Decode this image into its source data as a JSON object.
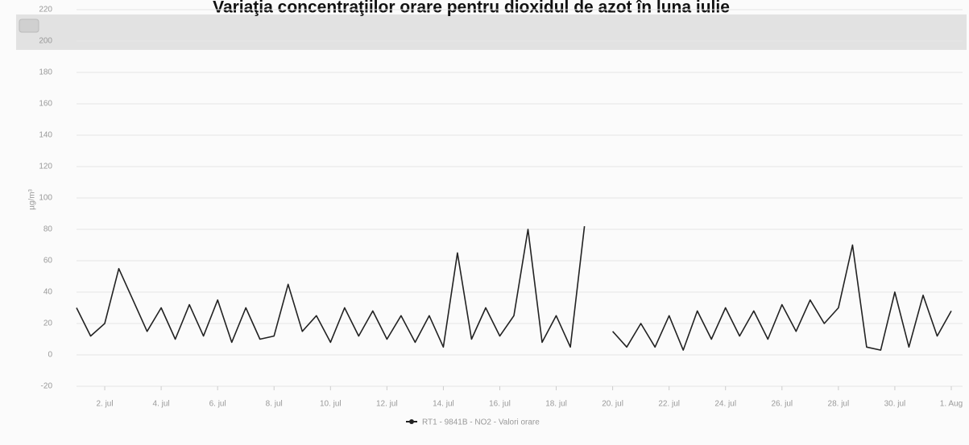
{
  "chart_data": {
    "type": "line",
    "title": "Variaţia concentraţiilor orare pentru dioxidul de azot în luna iulie",
    "y_label": "µg/m³",
    "x": [
      1,
      1.5,
      2,
      2.5,
      3,
      3.5,
      4,
      4.5,
      5,
      5.5,
      6,
      6.5,
      7,
      7.5,
      8,
      8.5,
      9,
      9.5,
      10,
      10.5,
      11,
      11.5,
      12,
      12.5,
      13,
      13.5,
      14,
      14.5,
      15,
      15.5,
      16,
      16.5,
      17,
      17.5,
      18,
      18.5,
      19,
      19.5,
      20,
      20.5,
      21,
      21.5,
      22,
      22.5,
      23,
      23.5,
      24,
      24.5,
      25,
      25.5,
      26,
      26.5,
      27,
      27.5,
      28,
      28.5,
      29,
      29.5,
      30,
      30.5,
      31,
      31.5,
      32
    ],
    "series": [
      {
        "name": "RT1 - 9841B - NO2 - Valori orare",
        "color": "#222222",
        "values": [
          30,
          12,
          20,
          55,
          35,
          15,
          30,
          10,
          32,
          12,
          35,
          8,
          30,
          10,
          12,
          45,
          15,
          25,
          8,
          30,
          12,
          28,
          10,
          25,
          8,
          25,
          5,
          65,
          10,
          30,
          12,
          25,
          80,
          8,
          25,
          5,
          82,
          null,
          15,
          5,
          20,
          5,
          25,
          3,
          28,
          10,
          30,
          12,
          28,
          10,
          32,
          15,
          35,
          20,
          30,
          70,
          5,
          3,
          40,
          5,
          38,
          12,
          28
        ]
      }
    ],
    "xlim": [
      1,
      32.4
    ],
    "xticks": [
      {
        "value": 2,
        "label": "2. jul"
      },
      {
        "value": 4,
        "label": "4. jul"
      },
      {
        "value": 6,
        "label": "6. jul"
      },
      {
        "value": 8,
        "label": "8. jul"
      },
      {
        "value": 10,
        "label": "10. jul"
      },
      {
        "value": 12,
        "label": "12. jul"
      },
      {
        "value": 14,
        "label": "14. jul"
      },
      {
        "value": 16,
        "label": "16. jul"
      },
      {
        "value": 18,
        "label": "18. jul"
      },
      {
        "value": 20,
        "label": "20. jul"
      },
      {
        "value": 22,
        "label": "22. jul"
      },
      {
        "value": 24,
        "label": "24. jul"
      },
      {
        "value": 26,
        "label": "26. jul"
      },
      {
        "value": 28,
        "label": "28. jul"
      },
      {
        "value": 30,
        "label": "30. jul"
      },
      {
        "value": 32,
        "label": "1. Aug"
      }
    ],
    "ylim": [
      -20,
      220
    ],
    "yticks": [
      -20,
      0,
      20,
      40,
      60,
      80,
      100,
      120,
      140,
      160,
      180,
      200,
      220
    ],
    "grid": true
  }
}
